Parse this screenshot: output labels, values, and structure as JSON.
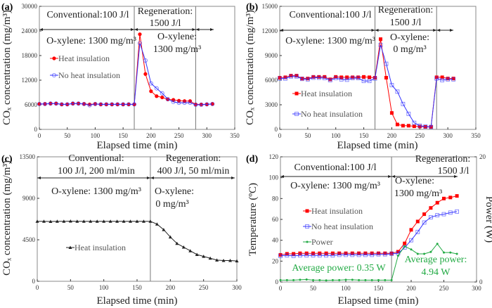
{
  "chart_data": [
    {
      "panel_label": "(a)",
      "type": "line",
      "xlabel": "Elapsed time (min)",
      "ylabel": "COₓ concentration (mg/m³)",
      "xlim": [
        0,
        350
      ],
      "xticks": [
        0,
        50,
        100,
        150,
        200,
        250,
        300,
        350
      ],
      "ylim": [
        0,
        30000
      ],
      "yticks": [
        0,
        6000,
        12000,
        18000,
        24000,
        30000
      ],
      "grid": false,
      "vlines": [
        170,
        280
      ],
      "legend": "center-left",
      "annotations": [
        "Conventional:100  J/l",
        "Regeneration:",
        "1500 J/l",
        "O-xylene:  1300 mg/m³",
        "O-xylene:",
        "1300 mg/m³"
      ],
      "x": [
        0,
        10,
        20,
        30,
        40,
        50,
        60,
        70,
        80,
        90,
        100,
        110,
        120,
        130,
        140,
        150,
        160,
        170,
        180,
        190,
        200,
        210,
        220,
        230,
        240,
        250,
        260,
        270,
        280,
        290,
        300,
        310
      ],
      "series": [
        {
          "name": "Heat insulation",
          "color": "#ff0000",
          "marker": "circle-filled",
          "values": [
            6200,
            6200,
            6300,
            6300,
            6100,
            6100,
            6300,
            6300,
            6200,
            6100,
            6200,
            6100,
            6100,
            6100,
            6100,
            6100,
            6100,
            6100,
            23200,
            13500,
            9300,
            8100,
            7800,
            7300,
            7200,
            7000,
            6900,
            6900,
            6100,
            6100,
            6100,
            6200
          ]
        },
        {
          "name": "No heat insulation",
          "color": "#3333ff",
          "marker": "circle-open",
          "values": [
            6200,
            6200,
            6300,
            6300,
            6100,
            6100,
            6300,
            6300,
            6200,
            5900,
            6200,
            6100,
            6100,
            6100,
            6100,
            6100,
            6100,
            6100,
            21000,
            16800,
            11200,
            10000,
            8800,
            7400,
            6700,
            6500,
            6500,
            6500,
            6000,
            6000,
            6100,
            6200
          ]
        }
      ]
    },
    {
      "panel_label": "(b)",
      "type": "line",
      "xlabel": "Elapsed time (min)",
      "ylabel": "COₓ concentration (mg/m³)",
      "xlim": [
        0,
        350
      ],
      "xticks": [
        0,
        50,
        100,
        150,
        200,
        250,
        300,
        350
      ],
      "ylim": [
        0,
        15000
      ],
      "yticks": [
        0,
        3000,
        6000,
        9000,
        12000,
        15000
      ],
      "grid": false,
      "vlines": [
        170,
        280
      ],
      "legend": "center-left",
      "annotations": [
        "Conventional:100  J/l",
        "Regeneration:",
        "1500 J/l",
        "O-xylene:  1300 mg/m³",
        "O-xylene:",
        "0 mg/m³"
      ],
      "x": [
        0,
        10,
        20,
        30,
        40,
        50,
        60,
        70,
        80,
        90,
        100,
        110,
        120,
        130,
        140,
        150,
        160,
        170,
        180,
        190,
        200,
        210,
        220,
        230,
        240,
        250,
        260,
        270,
        280,
        290,
        300,
        310
      ],
      "series": [
        {
          "name": "Heat insulation",
          "color": "#ff0000",
          "marker": "square-filled",
          "values": [
            6300,
            6350,
            6550,
            6550,
            6200,
            6200,
            6400,
            6400,
            6400,
            6100,
            6400,
            6350,
            6350,
            6350,
            6350,
            6400,
            6350,
            6300,
            11000,
            6300,
            2000,
            600,
            450,
            450,
            380,
            350,
            300,
            300,
            6350,
            6350,
            6200,
            6200
          ]
        },
        {
          "name": "No heat insulation",
          "color": "#3333ff",
          "marker": "square-open",
          "values": [
            6200,
            6200,
            6450,
            6450,
            6150,
            6100,
            6300,
            6300,
            6250,
            6000,
            6250,
            6100,
            6050,
            6250,
            6250,
            5900,
            5900,
            6200,
            10300,
            8000,
            5400,
            4600,
            3100,
            1900,
            800,
            450,
            350,
            300,
            6200,
            6000,
            6100,
            6100
          ]
        }
      ]
    },
    {
      "panel_label": "(c)",
      "type": "line",
      "xlabel": "Elapsed time (min)",
      "ylabel": "COₓ concentration (mg/m³)",
      "xlim": [
        0,
        300
      ],
      "xticks": [
        0,
        50,
        100,
        150,
        200,
        250,
        300
      ],
      "ylim": [
        0,
        13500
      ],
      "yticks": [
        0,
        4500,
        9000,
        13500
      ],
      "grid": false,
      "vlines": [
        170
      ],
      "legend": "center-left",
      "annotations": [
        "Conventional:",
        "100 J/l, 200 ml/min",
        "Regeneration:",
        "400 J/l, 50 ml/min",
        "O-xylene:  1300 mg/m³",
        "O-xylene:",
        "0 mg/m³"
      ],
      "x": [
        0,
        10,
        20,
        30,
        40,
        50,
        60,
        70,
        80,
        90,
        100,
        110,
        120,
        130,
        140,
        150,
        160,
        170,
        180,
        190,
        200,
        210,
        220,
        230,
        240,
        250,
        260,
        270,
        280,
        290,
        300
      ],
      "series": [
        {
          "name": "Heat insulation",
          "color": "#222222",
          "marker": "triangle-filled",
          "values": [
            6500,
            6500,
            6480,
            6500,
            6500,
            6520,
            6500,
            6500,
            6500,
            6500,
            6500,
            6500,
            6500,
            6500,
            6500,
            6500,
            6500,
            6500,
            6200,
            5600,
            4800,
            4100,
            3700,
            3300,
            2900,
            2700,
            2500,
            2300,
            2250,
            2250,
            2200
          ]
        }
      ]
    },
    {
      "panel_label": "(d)",
      "type": "line",
      "xlabel": "Elapsed time (min)",
      "ylabel": "Temperature (ºC)",
      "y2label": "Power (W)",
      "xlim": [
        0,
        300
      ],
      "xticks": [
        0,
        50,
        100,
        150,
        200,
        250,
        300
      ],
      "ylim": [
        0,
        120
      ],
      "yticks": [
        0,
        20,
        40,
        60,
        80,
        100,
        120
      ],
      "y2lim": [
        0,
        20
      ],
      "y2ticks": [
        0,
        20
      ],
      "grid": false,
      "vlines": [
        170
      ],
      "legend": "center-left",
      "annotations": [
        "Conventional:100  J/l",
        "Regeneration:",
        "1500 J/l",
        "O-xylene:  1300 mg/m³",
        "O-xylene:",
        "1300 mg/m³",
        "Average  power:  0.35 W",
        "Average  power:",
        "4.94 W"
      ],
      "x": [
        0,
        10,
        20,
        30,
        40,
        50,
        60,
        70,
        80,
        90,
        100,
        110,
        120,
        130,
        140,
        150,
        160,
        170,
        180,
        190,
        200,
        210,
        220,
        230,
        240,
        250,
        260,
        270
      ],
      "series": [
        {
          "name": "Heat insulation",
          "color": "#ff0000",
          "marker": "square-filled",
          "axis": "left",
          "values": [
            26,
            27,
            27,
            27.5,
            27.5,
            27.5,
            27.5,
            27.5,
            27.5,
            27.5,
            27.5,
            27.5,
            27.5,
            27.5,
            27.5,
            27.5,
            27.5,
            27.5,
            29,
            37,
            50,
            58,
            65,
            71,
            76,
            80,
            81,
            82.5
          ]
        },
        {
          "name": "No heat insulation",
          "color": "#3333ff",
          "marker": "square-open",
          "axis": "left",
          "values": [
            25,
            25.5,
            25,
            25.5,
            25.5,
            25.5,
            25.5,
            25.5,
            25.5,
            26,
            26,
            26,
            26,
            26,
            26,
            26.5,
            26.5,
            27,
            27.5,
            33,
            40,
            48,
            57,
            62,
            64,
            65,
            66.5,
            67.5
          ]
        },
        {
          "name": "Power",
          "color": "#22aa44",
          "marker": "dot",
          "axis": "right",
          "values": [
            0.3,
            0.3,
            0.3,
            0.35,
            0.4,
            0.3,
            0.3,
            0.25,
            0.3,
            0.3,
            0.35,
            0.35,
            0.3,
            0.3,
            0.3,
            0.3,
            0.3,
            0.3,
            4.2,
            5.7,
            5.2,
            4.5,
            4.5,
            4.8,
            6.1,
            4.7,
            4.7,
            4.5
          ]
        }
      ]
    }
  ]
}
